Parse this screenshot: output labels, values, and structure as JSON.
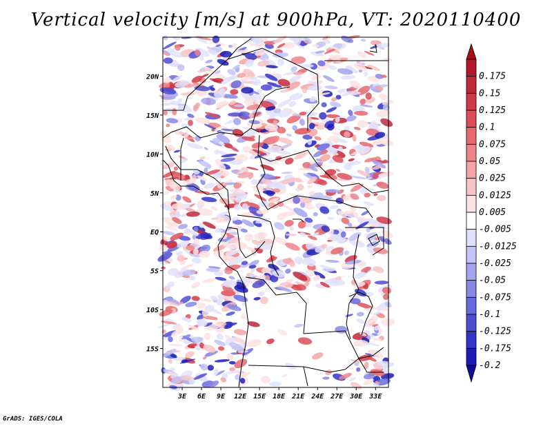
{
  "title": "Vertical velocity [m/s] at 900hPa, VT: 2020110400",
  "credit": "GrADS: IGES/COLA",
  "map": {
    "lon_range": [
      0,
      35
    ],
    "lat_range": [
      -20,
      25
    ],
    "lon_ticks": [
      {
        "value": 3,
        "label": "3E"
      },
      {
        "value": 6,
        "label": "6E"
      },
      {
        "value": 9,
        "label": "9E"
      },
      {
        "value": 12,
        "label": "12E"
      },
      {
        "value": 15,
        "label": "15E"
      },
      {
        "value": 18,
        "label": "18E"
      },
      {
        "value": 21,
        "label": "21E"
      },
      {
        "value": 24,
        "label": "24E"
      },
      {
        "value": 27,
        "label": "27E"
      },
      {
        "value": 30,
        "label": "30E"
      },
      {
        "value": 33,
        "label": "33E"
      }
    ],
    "lat_ticks": [
      {
        "value": 20,
        "label": "20N"
      },
      {
        "value": 15,
        "label": "15N"
      },
      {
        "value": 10,
        "label": "10N"
      },
      {
        "value": 5,
        "label": "5N"
      },
      {
        "value": 0,
        "label": "EQ"
      },
      {
        "value": -5,
        "label": "5S"
      },
      {
        "value": -10,
        "label": "10S"
      },
      {
        "value": -15,
        "label": "15S"
      }
    ]
  },
  "colorbar": {
    "levels": [
      {
        "label": "0.175",
        "color": "#b2182b"
      },
      {
        "label": "0.15",
        "color": "#c0283a"
      },
      {
        "label": "0.125",
        "color": "#cf3a48"
      },
      {
        "label": "0.1",
        "color": "#dd4e58"
      },
      {
        "label": "0.075",
        "color": "#e5696f"
      },
      {
        "label": "0.05",
        "color": "#ec8589"
      },
      {
        "label": "0.025",
        "color": "#f2a4a6"
      },
      {
        "label": "0.0125",
        "color": "#f7c4c5"
      },
      {
        "label": "0.005",
        "color": "#fbe2e2"
      },
      {
        "label": "-0.005",
        "color": "#ffffff"
      },
      {
        "label": "-0.0125",
        "color": "#e0e0fb"
      },
      {
        "label": "-0.025",
        "color": "#c3c3f5"
      },
      {
        "label": "-0.05",
        "color": "#a5a5ee"
      },
      {
        "label": "-0.075",
        "color": "#8787e6"
      },
      {
        "label": "-0.1",
        "color": "#6a6add"
      },
      {
        "label": "-0.125",
        "color": "#4e4ed3"
      },
      {
        "label": "-0.175",
        "color": "#3434c6"
      },
      {
        "label": "-0.2",
        "color": "#1c1cb4"
      }
    ],
    "top_color": "#a50f15",
    "bottom_color": "#0d0d9c"
  }
}
